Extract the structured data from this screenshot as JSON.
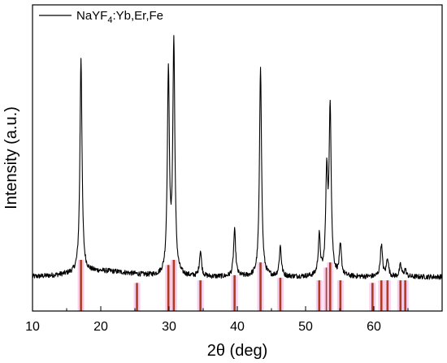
{
  "chart_data": {
    "type": "line",
    "xlabel": "2θ (deg)",
    "ylabel": "Intensity (a.u.)",
    "xlim": [
      10,
      70
    ],
    "x_ticks": [
      10,
      20,
      30,
      40,
      50,
      60
    ],
    "y_ticks_shown": false,
    "grid": false,
    "legend": {
      "position": "top-left",
      "label_main": "NaYF",
      "label_sub": "4",
      "label_rest": ":Yb,Er,Fe"
    },
    "series": [
      {
        "name": "NaYF4:Yb,Er,Fe",
        "color": "#000000",
        "baseline": 0.0,
        "peaks": [
          {
            "x": 17.1,
            "height": 0.93
          },
          {
            "x": 29.9,
            "height": 0.87
          },
          {
            "x": 30.7,
            "height": 1.0
          },
          {
            "x": 34.6,
            "height": 0.11
          },
          {
            "x": 39.6,
            "height": 0.2
          },
          {
            "x": 43.4,
            "height": 0.91
          },
          {
            "x": 46.3,
            "height": 0.13
          },
          {
            "x": 52.0,
            "height": 0.17
          },
          {
            "x": 53.1,
            "height": 0.43
          },
          {
            "x": 53.6,
            "height": 0.72
          },
          {
            "x": 55.1,
            "height": 0.13
          },
          {
            "x": 61.1,
            "height": 0.14
          },
          {
            "x": 62.0,
            "height": 0.08
          },
          {
            "x": 63.9,
            "height": 0.05
          },
          {
            "x": 64.6,
            "height": 0.03
          }
        ]
      }
    ],
    "reference_pattern": {
      "color": "#b23a1e",
      "highlight_color": "#f7c8ea",
      "lines": [
        {
          "x": 17.1,
          "height": 1.0
        },
        {
          "x": 25.3,
          "height": 0.55
        },
        {
          "x": 29.9,
          "height": 0.9
        },
        {
          "x": 30.7,
          "height": 1.0
        },
        {
          "x": 34.6,
          "height": 0.6
        },
        {
          "x": 39.6,
          "height": 0.7
        },
        {
          "x": 43.4,
          "height": 0.95
        },
        {
          "x": 46.3,
          "height": 0.65
        },
        {
          "x": 52.0,
          "height": 0.6
        },
        {
          "x": 53.1,
          "height": 0.85
        },
        {
          "x": 53.6,
          "height": 0.95
        },
        {
          "x": 55.1,
          "height": 0.6
        },
        {
          "x": 59.8,
          "height": 0.55
        },
        {
          "x": 61.1,
          "height": 0.6
        },
        {
          "x": 62.0,
          "height": 0.6
        },
        {
          "x": 63.9,
          "height": 0.6
        },
        {
          "x": 64.6,
          "height": 0.6
        }
      ]
    }
  }
}
